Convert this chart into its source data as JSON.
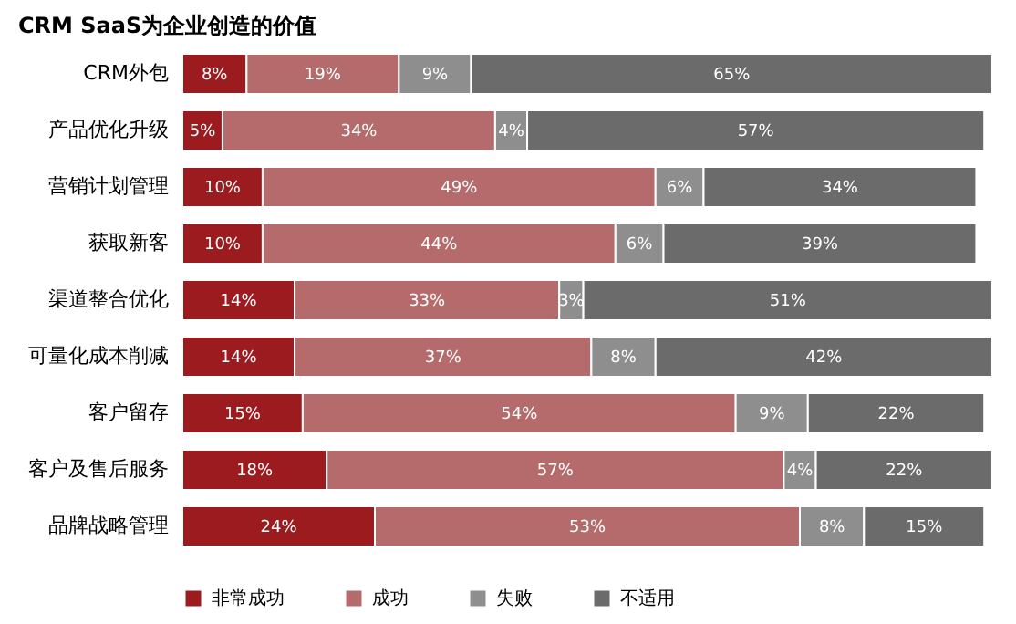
{
  "chart_data": {
    "type": "bar",
    "orientation": "horizontal",
    "stacked": true,
    "title": "CRM SaaS为企业创造的价值",
    "categories": [
      "CRM外包",
      "产品优化升级",
      "营销计划管理",
      "获取新客",
      "渠道整合优化",
      "可量化成本削减",
      "客户留存",
      "客户及售后服务",
      "品牌战略管理"
    ],
    "series": [
      {
        "name": "非常成功",
        "color": "#9b1b1e",
        "values": [
          8,
          5,
          10,
          10,
          14,
          14,
          15,
          18,
          24
        ],
        "value_labels": [
          "8%",
          "5%",
          "10%",
          "10%",
          "14%",
          "14%",
          "15%",
          "18%",
          "24%"
        ]
      },
      {
        "name": "成功",
        "color": "#b56b6b",
        "values": [
          19,
          34,
          49,
          44,
          33,
          37,
          54,
          57,
          53
        ],
        "value_labels": [
          "19%",
          "34%",
          "49%",
          "44%",
          "33%",
          "37%",
          "54%",
          "57%",
          "53%"
        ]
      },
      {
        "name": "失败",
        "color": "#8e8e8e",
        "values": [
          9,
          4,
          6,
          6,
          3,
          8,
          9,
          4,
          8
        ],
        "value_labels": [
          "9%",
          "4%",
          "6%",
          "6%",
          "3%",
          "8%",
          "9%",
          "4%",
          "8%"
        ]
      },
      {
        "name": "不适用",
        "color": "#6b6b6b",
        "values": [
          65,
          57,
          34,
          39,
          51,
          42,
          22,
          22,
          15
        ],
        "value_labels": [
          "65%",
          "57%",
          "34%",
          "39%",
          "51%",
          "42%",
          "22%",
          "22%",
          "15%"
        ]
      }
    ],
    "legend": "bottom",
    "tick_labels": "y",
    "grid": false
  }
}
